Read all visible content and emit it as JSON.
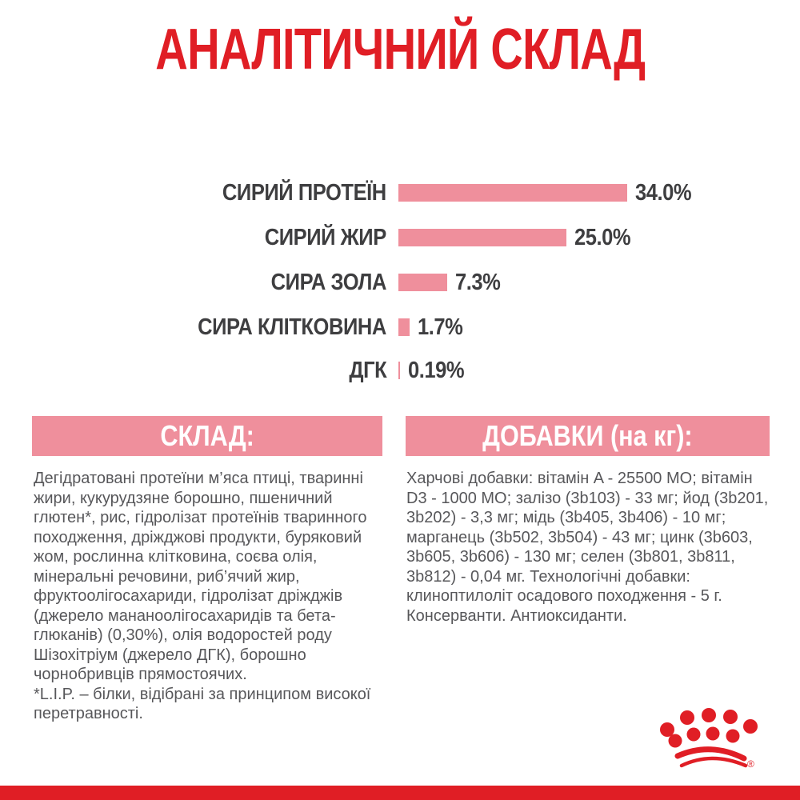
{
  "title": "АНАЛІТИЧНИЙ СКЛАД",
  "chart_data": {
    "type": "bar",
    "orientation": "horizontal",
    "title": "АНАЛІТИЧНИЙ СКЛАД",
    "categories": [
      "СИРИЙ ПРОТЕЇН",
      "СИРИЙ ЖИР",
      "СИРА ЗОЛА",
      "СИРА КЛІТКОВИНА",
      "ДГК"
    ],
    "values": [
      34.0,
      25.0,
      7.3,
      1.7,
      0.19
    ],
    "value_labels": [
      "34.0%",
      "25.0%",
      "7.3%",
      "1.7%",
      "0.19%"
    ],
    "xlabel": "",
    "ylabel": "",
    "xlim": [
      0,
      40
    ],
    "grid": "off",
    "legend": "none",
    "bar_color": "#EF8F9C",
    "label_color": "#3E3E40"
  },
  "sections": {
    "composition": {
      "header": "СКЛАД:",
      "paragraphs": [
        "Дегідратовані протеїни м’яса птиці, тваринні жири, кукурудзяне борошно, пшеничний глютен*, рис, гідролізат протеїнів тваринного походження, дріжджові продукти, буряковий жом, рослинна клітковина, соєва олія, мінеральні речовини, риб’ячий жир, фруктоолігосахариди, гідролізат дріжджів (джерело мананоолігосахаридів та бета-глюканів) (0,30%), олія водоростей роду Шізохітріум (джерело ДГК), борошно чорнобривців прямостоячих.",
        "*L.I.P. – білки, відібрані за принципом високої перетравності."
      ]
    },
    "additives": {
      "header": "ДОБАВКИ (на кг):",
      "paragraphs": [
        "Харчові добавки: вітамін A - 25500 МО; вітамін D3 - 1000 МО; залізо (3b103) - 33 мг; йод (3b201, 3b202) - 3,3 мг; мідь (3b405, 3b406) - 10 мг; марганець (3b502, 3b504) - 43 мг; цинк (3b603, 3b605, 3b606) - 130 мг; селен (3b801, 3b811, 3b812) - 0,04 мг. Технологічні добавки: клиноптилоліт осадового походження - 5 г. Консерванти. Антиоксиданти."
      ]
    }
  },
  "logo": {
    "name": "royal-canin-crown",
    "registered_mark": "®",
    "color": "#E01E25"
  },
  "colors": {
    "accent_red": "#E01E25",
    "bar_pink": "#EF8F9C",
    "heading_text": "#FFFFFF",
    "chart_label": "#3E3E40",
    "body_text": "#57575A",
    "background": "#FFFFFF"
  }
}
